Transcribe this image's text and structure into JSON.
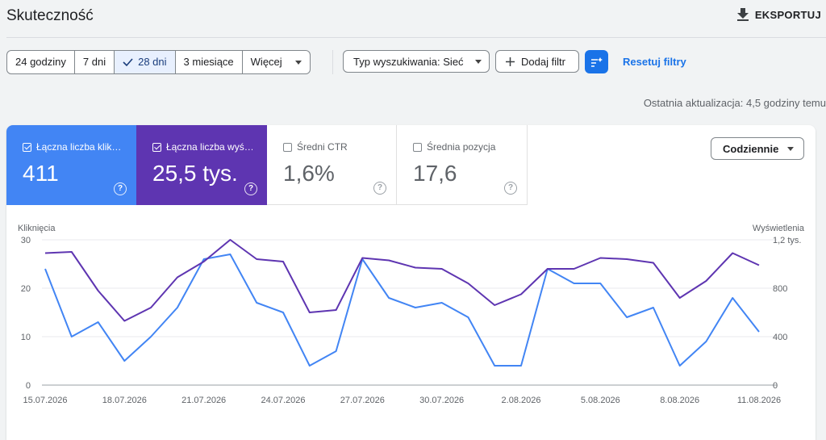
{
  "header": {
    "title": "Skuteczność",
    "export_label": "EKSPORTUJ"
  },
  "date_range": {
    "options": [
      "24 godziny",
      "7 dni",
      "28 dni",
      "3 miesiące",
      "Więcej"
    ],
    "selected": "28 dni"
  },
  "filters": {
    "search_type": "Typ wyszukiwania: Sieć",
    "add_filter": "Dodaj filtr",
    "reset": "Resetuj filtry"
  },
  "last_update": "Ostatnia aktualizacja: 4,5 godziny temu",
  "metrics": [
    {
      "label": "Łączna liczba klik…",
      "value": "411",
      "checked": true
    },
    {
      "label": "Łączna liczba wyś…",
      "value": "25,5 tys.",
      "checked": true
    },
    {
      "label": "Średni CTR",
      "value": "1,6%",
      "checked": false
    },
    {
      "label": "Średnia pozycja",
      "value": "17,6",
      "checked": false
    }
  ],
  "granularity": "Codziennie",
  "colors": {
    "clicks": "#4285f4",
    "impressions": "#5e35b1",
    "accent": "#1a73e8"
  },
  "icons": [
    "download-icon",
    "check-icon",
    "caret-down-icon",
    "plus-icon",
    "filter-list-icon",
    "checkbox-icon",
    "help-icon"
  ],
  "chart_data": {
    "type": "line",
    "x": [
      "15.07.2026",
      "16.07.2026",
      "17.07.2026",
      "18.07.2026",
      "19.07.2026",
      "20.07.2026",
      "21.07.2026",
      "22.07.2026",
      "23.07.2026",
      "24.07.2026",
      "25.07.2026",
      "26.07.2026",
      "27.07.2026",
      "28.07.2026",
      "29.07.2026",
      "30.07.2026",
      "31.07.2026",
      "1.08.2026",
      "2.08.2026",
      "3.08.2026",
      "4.08.2026",
      "5.08.2026",
      "6.08.2026",
      "7.08.2026",
      "8.08.2026",
      "9.08.2026",
      "10.08.2026",
      "11.08.2026"
    ],
    "x_tick_labels": [
      "15.07.2026",
      "18.07.2026",
      "21.07.2026",
      "24.07.2026",
      "27.07.2026",
      "30.07.2026",
      "2.08.2026",
      "5.08.2026",
      "8.08.2026",
      "11.08.2026"
    ],
    "series": [
      {
        "name": "Kliknięcia",
        "axis": "left",
        "color": "#4285f4",
        "values": [
          24,
          10,
          13,
          5,
          10,
          16,
          26,
          27,
          17,
          15,
          4,
          7,
          26,
          18,
          16,
          17,
          14,
          4,
          4,
          24,
          21,
          21,
          14,
          16,
          4,
          9,
          18,
          11
        ]
      },
      {
        "name": "Wyświetlenia",
        "axis": "right",
        "color": "#5e35b1",
        "values": [
          1090,
          1100,
          780,
          530,
          640,
          890,
          1020,
          1200,
          1040,
          1020,
          600,
          620,
          1050,
          1030,
          970,
          960,
          840,
          660,
          750,
          960,
          960,
          1050,
          1040,
          1010,
          720,
          860,
          1090,
          990
        ]
      }
    ],
    "ylabel_left": "Kliknięcia",
    "ylabel_right": "Wyświetlenia",
    "ylim_left": [
      0,
      30
    ],
    "yticks_left": [
      "0",
      "10",
      "20",
      "30"
    ],
    "ylim_right": [
      0,
      1200
    ],
    "yticks_right": [
      "0",
      "400",
      "800",
      "1,2 tys."
    ],
    "grid": true
  }
}
